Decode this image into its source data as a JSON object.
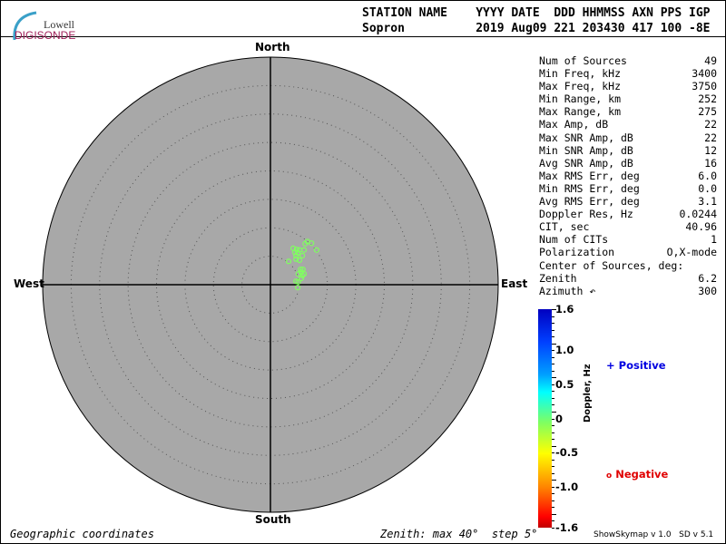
{
  "logo": {
    "line1": "Lowell",
    "line2": "DIGISONDE"
  },
  "header": {
    "labels": "STATION NAME    YYYY DATE  DDD HHMMSS AXN PPS IGP",
    "values": "Sopron          2019 Aug09 221 203430 417 100 -8E"
  },
  "stats": [
    {
      "label": "Num of Sources",
      "value": "49"
    },
    {
      "label": "Min Freq, kHz",
      "value": "3400"
    },
    {
      "label": "Max Freq, kHz",
      "value": "3750"
    },
    {
      "label": "Min Range, km",
      "value": "252"
    },
    {
      "label": "Max Range, km",
      "value": "275"
    },
    {
      "label": "Max Amp, dB",
      "value": "22"
    },
    {
      "label": "Max SNR Amp, dB",
      "value": "22"
    },
    {
      "label": "Min SNR Amp, dB",
      "value": "12"
    },
    {
      "label": "Avg SNR Amp, dB",
      "value": "16"
    },
    {
      "label": "Max RMS Err, deg",
      "value": "6.0"
    },
    {
      "label": "Min RMS Err, deg",
      "value": "0.0"
    },
    {
      "label": "Avg RMS Err, deg",
      "value": "3.1"
    },
    {
      "label": "Doppler Res, Hz",
      "value": "0.0244"
    },
    {
      "label": "CIT, sec",
      "value": "40.96"
    },
    {
      "label": "Num of CITs",
      "value": "1"
    },
    {
      "label": "Polarization",
      "value": "O,X-mode"
    },
    {
      "label": "Center of Sources, deg:",
      "value": ""
    },
    {
      "label": "       Zenith",
      "value": "6.2"
    },
    {
      "label": "       Azimuth ↶",
      "value": "300"
    }
  ],
  "chart_data": {
    "type": "scatter",
    "projection": "polar skymap",
    "directions": {
      "north": "North",
      "south": "South",
      "east": "East",
      "west": "West"
    },
    "zenith_max": 40,
    "zenith_step": 5,
    "background": "#a8a8a8",
    "point_color": "#80ff60",
    "point_marker": "circle (Negative)",
    "points_east_north_deg": [
      [
        6.5,
        7.6
      ],
      [
        7.2,
        7.3
      ],
      [
        6.1,
        7.2
      ],
      [
        4.0,
        6.4
      ],
      [
        4.6,
        6.2
      ],
      [
        5.1,
        6.1
      ],
      [
        5.9,
        6.1
      ],
      [
        8.1,
        6.1
      ],
      [
        4.3,
        5.7
      ],
      [
        4.8,
        5.6
      ],
      [
        5.6,
        5.1
      ],
      [
        4.5,
        5.1
      ],
      [
        4.5,
        4.5
      ],
      [
        5.1,
        4.3
      ],
      [
        3.2,
        4.1
      ],
      [
        5.3,
        2.7
      ],
      [
        5.7,
        2.7
      ],
      [
        5.4,
        2.2
      ],
      [
        5.9,
        1.9
      ],
      [
        4.9,
        1.9
      ],
      [
        5.6,
        1.6
      ],
      [
        5.4,
        1.1
      ],
      [
        4.5,
        0.6
      ],
      [
        4.9,
        0.5
      ],
      [
        4.8,
        -0.5
      ]
    ],
    "colorbar": {
      "label": "Doppler, Hz",
      "range": [
        -1.6,
        1.6
      ],
      "ticks": [
        "1.6",
        "1.0",
        "0.5",
        "0",
        "-0.5",
        "-1.0",
        "-1.6"
      ],
      "tick_values": [
        1.6,
        1.0,
        0.5,
        0,
        -0.5,
        -1.0,
        -1.6
      ]
    },
    "legend": {
      "positive": "Positive",
      "negative": "Negative",
      "positive_color": "#0000e0",
      "negative_color": "#e00000"
    }
  },
  "footer": {
    "left": "Geographic coordinates",
    "center": "Zenith: max 40°  step 5°",
    "right": "ShowSkymap v 1.0   SD v 5.1"
  }
}
